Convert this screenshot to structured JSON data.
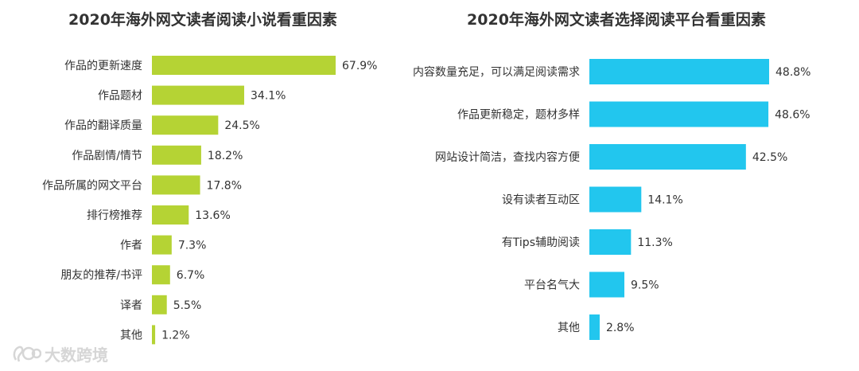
{
  "watermark": {
    "text": "大数跨境",
    "icon": "logo-icon"
  },
  "chart_data": [
    {
      "type": "bar",
      "orientation": "horizontal",
      "title": "2020年海外网文读者阅读小说看重因素",
      "categories": [
        "作品的更新速度",
        "作品题材",
        "作品的翻译质量",
        "作品剧情/情节",
        "作品所属的网文平台",
        "排行榜推荐",
        "作者",
        "朋友的推荐/书评",
        "译者",
        "其他"
      ],
      "values": [
        67.9,
        34.1,
        24.5,
        18.2,
        17.8,
        13.6,
        7.3,
        6.7,
        5.5,
        1.2
      ],
      "value_labels": [
        "67.9%",
        "34.1%",
        "24.5%",
        "18.2%",
        "17.8%",
        "13.6%",
        "7.3%",
        "6.7%",
        "5.5%",
        "1.2%"
      ],
      "color": "#b5d334",
      "xlim": [
        0,
        67.9
      ],
      "grid": false,
      "legend": "none"
    },
    {
      "type": "bar",
      "orientation": "horizontal",
      "title": "2020年海外网文读者选择阅读平台看重因素",
      "categories": [
        "内容数量充足，可以满足阅读需求",
        "作品更新稳定，题材多样",
        "网站设计简洁，查找内容方便",
        "设有读者互动区",
        "有Tips辅助阅读",
        "平台名气大",
        "其他"
      ],
      "values": [
        48.8,
        48.6,
        42.5,
        14.1,
        11.3,
        9.5,
        2.8
      ],
      "value_labels": [
        "48.8%",
        "48.6%",
        "42.5%",
        "14.1%",
        "11.3%",
        "9.5%",
        "2.8%"
      ],
      "color": "#22c6ee",
      "xlim": [
        0,
        48.8
      ],
      "grid": false,
      "legend": "none"
    }
  ]
}
